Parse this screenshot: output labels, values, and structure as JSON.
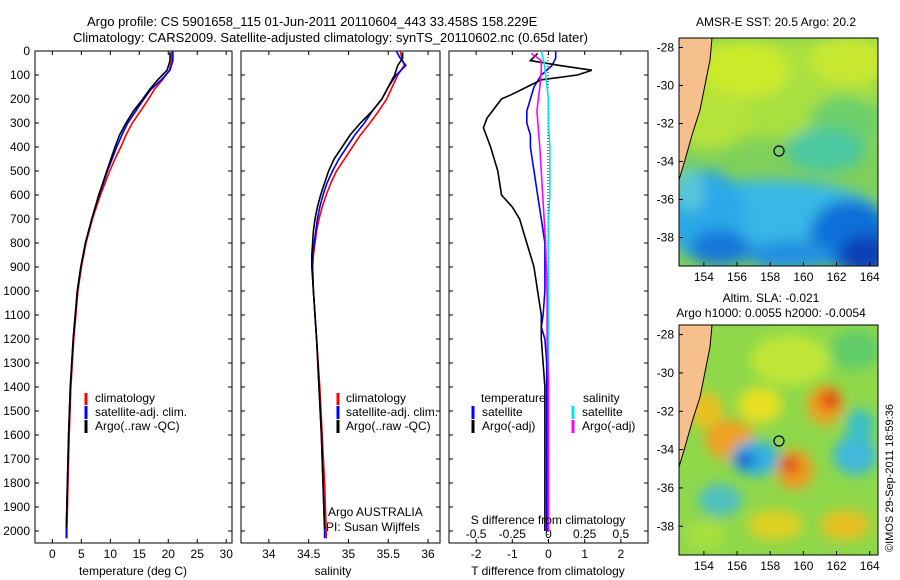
{
  "header": {
    "line1": "Argo profile: CS 5901658_115 01-Jun-2011 20110604_443 33.458S 158.229E",
    "line2": "Climatology: CARS2009. Satellite-adjusted climatology: synTS_20110602.nc (0.65d later)"
  },
  "colors": {
    "climatology": "#ff0000",
    "satellite": "#0000ff",
    "argo": "#000000",
    "sal_satellite": "#00e5e5",
    "sal_argo": "#ff00ff",
    "land": "#f5c08c"
  },
  "depth_axis": {
    "ticks": [
      "0",
      "100",
      "200",
      "300",
      "400",
      "500",
      "600",
      "700",
      "800",
      "900",
      "1000",
      "1100",
      "1200",
      "1300",
      "1400",
      "1500",
      "1600",
      "1700",
      "1800",
      "1900",
      "2000"
    ],
    "ylim": [
      0,
      2050
    ]
  },
  "legend_profile": {
    "climatology": "climatology",
    "satellite": "satellite-adj. clim.",
    "argo": "Argo(..raw -QC)"
  },
  "legend_diff": {
    "temperature_title": "temperature",
    "salinity_title": "salinity",
    "t_satellite": "satellite",
    "t_argo": "Argo(-adj)",
    "s_satellite": "satellite",
    "s_argo": "Argo(-adj)"
  },
  "credit": {
    "line1": "Argo AUSTRALIA",
    "line2": "PI: Susan Wijffels"
  },
  "maps": {
    "sst_title": "AMSR-E SST: 20.5 Argo: 20.2",
    "sla_title1": "Altim. SLA: -0.021",
    "sla_title2": "Argo h1000: 0.0055 h2000: -0.0054",
    "lon_ticks": [
      "154",
      "156",
      "158",
      "160",
      "162",
      "164"
    ],
    "lat_ticks": [
      "-28",
      "-30",
      "-32",
      "-34",
      "-36",
      "-38"
    ],
    "float_position": {
      "lon": 158.229,
      "lat": -33.458
    }
  },
  "watermark": "©IMOS 29-Sep-2011 18:59:36",
  "chart_data": [
    {
      "type": "line",
      "xlabel": "temperature (deg C)",
      "xticks": [
        "0",
        "5",
        "10",
        "15",
        "20",
        "25",
        "30"
      ],
      "xlim": [
        -3,
        31
      ],
      "series": [
        {
          "name": "climatology",
          "depth": [
            0,
            40,
            80,
            120,
            160,
            200,
            250,
            300,
            350,
            400,
            450,
            500,
            550,
            600,
            650,
            700,
            800,
            900,
            1000,
            1200,
            1400,
            1600,
            1800,
            2000,
            2030
          ],
          "values": [
            20.6,
            20.6,
            20.2,
            19.0,
            17.6,
            16.6,
            15.2,
            13.8,
            12.7,
            11.8,
            10.8,
            9.9,
            9.1,
            8.3,
            7.6,
            6.9,
            5.8,
            5.0,
            4.4,
            3.7,
            3.2,
            2.9,
            2.7,
            2.5,
            2.5
          ]
        },
        {
          "name": "satellite-adj. clim.",
          "depth": [
            0,
            40,
            80,
            120,
            160,
            200,
            250,
            300,
            350,
            400,
            450,
            500,
            550,
            600,
            650,
            700,
            800,
            900,
            1000,
            1200,
            1400,
            1600,
            1800,
            2000,
            2030
          ],
          "values": [
            20.8,
            20.8,
            20.3,
            18.8,
            17.0,
            15.8,
            14.4,
            13.0,
            12.0,
            11.1,
            10.3,
            9.5,
            8.8,
            8.1,
            7.4,
            6.8,
            5.7,
            4.9,
            4.3,
            3.6,
            3.1,
            2.8,
            2.6,
            2.4,
            2.4
          ]
        },
        {
          "name": "Argo(..raw -QC)",
          "depth": [
            5,
            40,
            80,
            120,
            160,
            200,
            250,
            300,
            350,
            400,
            450,
            500,
            550,
            600,
            650,
            700,
            800,
            900,
            1000,
            1200,
            1400,
            1600,
            1800,
            1990
          ],
          "values": [
            20.3,
            20.3,
            19.8,
            18.2,
            16.8,
            15.6,
            14.0,
            12.7,
            11.6,
            10.8,
            10.1,
            9.4,
            8.7,
            8.0,
            7.4,
            6.8,
            5.7,
            4.9,
            4.3,
            3.6,
            3.1,
            2.8,
            2.6,
            2.4
          ]
        }
      ]
    },
    {
      "type": "line",
      "xlabel": "salinity",
      "xticks": [
        "34",
        "34.5",
        "35",
        "35.5",
        "36"
      ],
      "xlim": [
        33.65,
        36.15
      ],
      "series": [
        {
          "name": "climatology",
          "depth": [
            0,
            30,
            60,
            100,
            150,
            200,
            250,
            300,
            350,
            400,
            450,
            500,
            550,
            600,
            650,
            700,
            750,
            800,
            850,
            900,
            1000,
            1200,
            1400,
            1600,
            1800,
            2000,
            2030
          ],
          "values": [
            35.65,
            35.67,
            35.7,
            35.62,
            35.55,
            35.48,
            35.38,
            35.27,
            35.15,
            35.05,
            34.95,
            34.85,
            34.78,
            34.72,
            34.67,
            34.63,
            34.6,
            34.58,
            34.56,
            34.55,
            34.56,
            34.6,
            34.64,
            34.67,
            34.7,
            34.72,
            34.72
          ]
        },
        {
          "name": "satellite-adj. clim.",
          "depth": [
            0,
            30,
            60,
            100,
            150,
            200,
            250,
            300,
            350,
            400,
            450,
            500,
            550,
            600,
            650,
            700,
            750,
            800,
            850,
            900,
            1000,
            1200,
            1400,
            1600,
            1800,
            2000,
            2030
          ],
          "values": [
            35.6,
            35.65,
            35.72,
            35.6,
            35.5,
            35.42,
            35.3,
            35.2,
            35.08,
            34.98,
            34.88,
            34.8,
            34.73,
            34.68,
            34.64,
            34.61,
            34.59,
            34.57,
            34.55,
            34.55,
            34.56,
            34.6,
            34.63,
            34.66,
            34.68,
            34.7,
            34.7
          ]
        },
        {
          "name": "Argo(..raw -QC)",
          "depth": [
            5,
            30,
            60,
            100,
            150,
            200,
            250,
            300,
            350,
            400,
            450,
            500,
            550,
            600,
            650,
            700,
            750,
            800,
            850,
            900,
            1000,
            1200,
            1400,
            1600,
            1800,
            1990
          ],
          "values": [
            35.68,
            35.68,
            35.62,
            35.58,
            35.5,
            35.42,
            35.3,
            35.15,
            35.02,
            34.92,
            34.82,
            34.75,
            34.7,
            34.65,
            34.61,
            34.58,
            34.56,
            34.55,
            34.54,
            34.54,
            34.56,
            34.6,
            34.63,
            34.66,
            34.68,
            34.7
          ]
        }
      ]
    },
    {
      "type": "line",
      "xlabel": "T difference from climatology",
      "xlabel_top": "S difference from climatology",
      "xticks": [
        "-2",
        "-1",
        "0",
        "1",
        "2"
      ],
      "xticks_top": [
        "-0.5",
        "-0.25",
        "0",
        "0.25",
        "0.5"
      ],
      "xlim": [
        -2.75,
        2.75
      ],
      "series": [
        {
          "name": "temperature satellite",
          "depth": [
            0,
            30,
            60,
            100,
            150,
            200,
            250,
            300,
            350,
            400,
            500,
            600,
            700,
            800,
            900,
            1000,
            1100,
            1150,
            1200,
            1300,
            1400,
            1600,
            1800,
            2000
          ],
          "values": [
            0.2,
            0.2,
            0.1,
            -0.2,
            -0.4,
            -0.5,
            -0.6,
            -0.6,
            -0.5,
            -0.5,
            -0.4,
            -0.3,
            -0.2,
            -0.1,
            -0.1,
            -0.1,
            -0.15,
            -0.2,
            -0.1,
            -0.05,
            -0.05,
            -0.05,
            -0.05,
            -0.05
          ]
        },
        {
          "name": "temperature Argo(-adj)",
          "depth": [
            10,
            40,
            60,
            80,
            100,
            120,
            150,
            180,
            200,
            240,
            280,
            320,
            400,
            500,
            600,
            650,
            700,
            800,
            900,
            1000,
            1100,
            1200,
            1300,
            1400,
            1600,
            1800,
            2000
          ],
          "values": [
            -0.3,
            -0.5,
            0.3,
            1.2,
            0.8,
            -0.2,
            -0.6,
            -1.0,
            -1.3,
            -1.5,
            -1.7,
            -1.8,
            -1.6,
            -1.4,
            -1.3,
            -1.0,
            -0.8,
            -0.6,
            -0.4,
            -0.3,
            -0.2,
            -0.2,
            -0.15,
            -0.1,
            -0.1,
            -0.1,
            -0.1
          ]
        },
        {
          "name": "salinity satellite",
          "depth": [
            0,
            50,
            100,
            200,
            300,
            400,
            500,
            600,
            700,
            800,
            900,
            1000,
            1200,
            1400,
            1600,
            1800,
            2000
          ],
          "values": [
            -0.05,
            -0.03,
            -0.02,
            0.0,
            0.0,
            0.01,
            0.01,
            0.01,
            0.0,
            0.0,
            0.0,
            0.0,
            0.0,
            0.0,
            0.0,
            0.0,
            0.0
          ]
        },
        {
          "name": "salinity Argo(-adj)",
          "depth": [
            10,
            40,
            80,
            150,
            250,
            400,
            600,
            800,
            1000,
            1200,
            1400,
            1600,
            1800,
            2000
          ],
          "values": [
            -0.12,
            -0.05,
            -0.05,
            -0.06,
            -0.08,
            -0.06,
            -0.04,
            -0.02,
            -0.01,
            -0.01,
            0.0,
            0.0,
            0.0,
            0.0
          ]
        }
      ]
    }
  ]
}
